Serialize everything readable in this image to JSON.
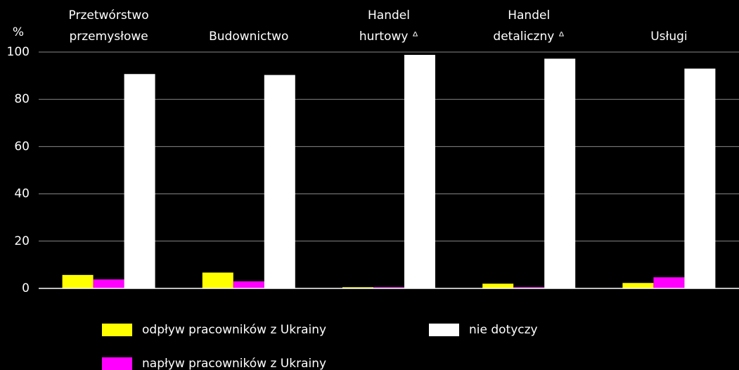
{
  "chart_data": {
    "type": "bar",
    "ylabel": "%",
    "categories": [
      [
        "Przetwórstwo",
        "przemysłowe"
      ],
      [
        "Budownictwo"
      ],
      [
        "Handel",
        "hurtowy ᐞ"
      ],
      [
        "Handel",
        "detaliczny ᐞ"
      ],
      [
        "Usługi"
      ]
    ],
    "series": [
      {
        "name": "odpływ pracowników z Ukrainy",
        "color": "#ffff00",
        "values": [
          5.7,
          6.7,
          0.5,
          2.0,
          2.3
        ]
      },
      {
        "name": "napływ pracowników z Ukrainy",
        "color": "#ff00ff",
        "values": [
          3.8,
          3.0,
          0.5,
          0.5,
          4.7
        ]
      },
      {
        "name": "nie dotyczy",
        "color": "#ffffff",
        "values": [
          90.7,
          90.3,
          98.8,
          97.2,
          93.0
        ]
      }
    ],
    "ylim": [
      0,
      100
    ],
    "yticks": [
      0,
      20,
      40,
      60,
      80,
      100
    ],
    "grid": true
  }
}
